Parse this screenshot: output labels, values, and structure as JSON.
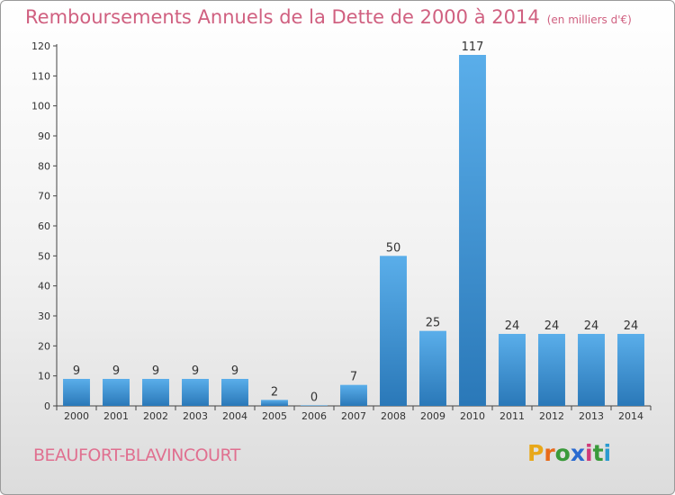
{
  "title": "Remboursements Annuels de la Dette de 2000 à 2014",
  "unit": "(en milliers d'€)",
  "commune": "BEAUFORT-BLAVINCOURT",
  "logo": {
    "letters": [
      "P",
      "r",
      "o",
      "x",
      "i",
      "t",
      "i"
    ],
    "colors": [
      "#e8a81a",
      "#e86a1a",
      "#3a9a3a",
      "#2a6ad0",
      "#d03a7a",
      "#3a9a3a",
      "#2a9ad0"
    ]
  },
  "colors": {
    "bar_light": "#5aaeea",
    "bar_dark": "#2a78b8",
    "title": "#d06080"
  },
  "chart_data": {
    "type": "bar",
    "categories": [
      "2000",
      "2001",
      "2002",
      "2003",
      "2004",
      "2005",
      "2006",
      "2007",
      "2008",
      "2009",
      "2010",
      "2011",
      "2012",
      "2013",
      "2014"
    ],
    "values": [
      9,
      9,
      9,
      9,
      9,
      2,
      0,
      7,
      50,
      25,
      117,
      24,
      24,
      24,
      24
    ],
    "yticks": [
      0,
      10,
      20,
      30,
      40,
      50,
      60,
      70,
      80,
      90,
      100,
      110,
      120
    ],
    "ylim": [
      0,
      120
    ],
    "grid": false
  }
}
